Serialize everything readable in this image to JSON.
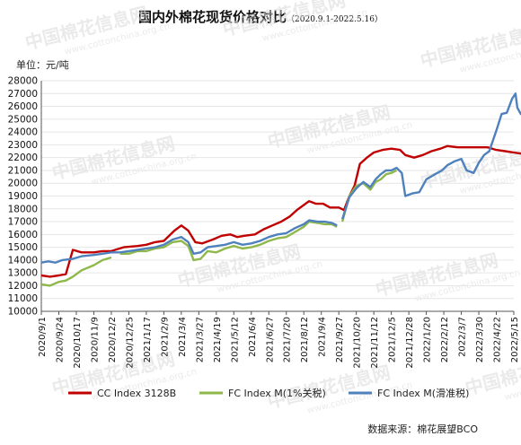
{
  "title": "国内外棉花现货价格对比",
  "subtitle": "（2020.9.1-2022.5.16）",
  "unit_label": "单位：元/吨",
  "source_label": "数据来源：棉花展望BCO",
  "watermark": {
    "brand": "中国棉花信息网",
    "url": "www.cottonchina.org.cn"
  },
  "colors": {
    "cc_index": "#c00000",
    "fc_1pct": "#8fb84a",
    "fc_sliding": "#4f81bd",
    "grid": "#e6e6e6",
    "axis": "#555555",
    "watermark": "#d9d9d9"
  },
  "chart_data": {
    "type": "line",
    "title": "国内外棉花现货价格对比",
    "ylabel": "单位：元/吨",
    "ylim": [
      10000,
      28000
    ],
    "yticks": [
      10000,
      11000,
      12000,
      13000,
      14000,
      15000,
      16000,
      17000,
      18000,
      19000,
      20000,
      21000,
      22000,
      23000,
      24000,
      25000,
      26000,
      27000,
      28000
    ],
    "categories": [
      "2020/9/1",
      "2020/9/24",
      "2020/10/17",
      "2020/11/9",
      "2020/12/2",
      "2020/12/25",
      "2021/1/17",
      "2021/2/9",
      "2021/3/4",
      "2021/3/27",
      "2021/4/19",
      "2021/5/12",
      "2021/6/4",
      "2021/6/27",
      "2021/7/20",
      "2021/8/12",
      "2021/9/4",
      "2021/9/27",
      "2021/10/20",
      "2021/11/12",
      "2021/12/5",
      "2021/12/28",
      "2022/1/20",
      "2022/2/12",
      "2022/3/7",
      "2022/3/30",
      "2022/4/22",
      "2022/5/15"
    ],
    "grid": true,
    "legend_position": "bottom",
    "series": [
      {
        "name": "CC Index 3128B",
        "color": "#c00000",
        "points": [
          [
            0,
            12800
          ],
          [
            0.5,
            12700
          ],
          [
            1,
            12800
          ],
          [
            1.4,
            12900
          ],
          [
            1.8,
            14800
          ],
          [
            2.3,
            14600
          ],
          [
            3,
            14600
          ],
          [
            3.5,
            14700
          ],
          [
            4,
            14700
          ],
          [
            4.7,
            15000
          ],
          [
            5.5,
            15100
          ],
          [
            6,
            15200
          ],
          [
            6.5,
            15400
          ],
          [
            7,
            15500
          ],
          [
            7.6,
            16300
          ],
          [
            8,
            16700
          ],
          [
            8.4,
            16300
          ],
          [
            8.8,
            15400
          ],
          [
            9.2,
            15300
          ],
          [
            9.8,
            15600
          ],
          [
            10.3,
            15900
          ],
          [
            10.8,
            16000
          ],
          [
            11.2,
            15800
          ],
          [
            11.6,
            15900
          ],
          [
            12.2,
            16000
          ],
          [
            12.7,
            16400
          ],
          [
            13.2,
            16700
          ],
          [
            13.7,
            17000
          ],
          [
            14.2,
            17400
          ],
          [
            14.6,
            17900
          ],
          [
            15,
            18300
          ],
          [
            15.3,
            18600
          ],
          [
            15.7,
            18400
          ],
          [
            16.1,
            18400
          ],
          [
            16.5,
            18100
          ],
          [
            17,
            18100
          ],
          [
            17.3,
            17900
          ],
          [
            17.6,
            19000
          ],
          [
            17.9,
            19800
          ],
          [
            18.2,
            21500
          ],
          [
            18.6,
            22000
          ],
          [
            19,
            22400
          ],
          [
            19.5,
            22600
          ],
          [
            20,
            22700
          ],
          [
            20.5,
            22600
          ],
          [
            20.8,
            22200
          ],
          [
            21.3,
            22000
          ],
          [
            21.8,
            22200
          ],
          [
            22.3,
            22500
          ],
          [
            22.8,
            22700
          ],
          [
            23.2,
            22900
          ],
          [
            23.8,
            22800
          ],
          [
            24.3,
            22800
          ],
          [
            25,
            22800
          ],
          [
            25.5,
            22800
          ],
          [
            26,
            22600
          ],
          [
            26.5,
            22500
          ],
          [
            27,
            22400
          ],
          [
            27.5,
            22300
          ]
        ],
        "segments_break_after": []
      },
      {
        "name": "FC Index M(1%关税)",
        "color": "#8fb84a",
        "points": [
          [
            0,
            12100
          ],
          [
            0.5,
            12000
          ],
          [
            1,
            12300
          ],
          [
            1.4,
            12400
          ],
          [
            1.8,
            12700
          ],
          [
            2.3,
            13200
          ],
          [
            3,
            13600
          ],
          [
            3.5,
            14000
          ],
          [
            4,
            14200
          ],
          [
            4.5,
            14500
          ],
          [
            5,
            14500
          ],
          [
            5.5,
            14700
          ],
          [
            6,
            14700
          ],
          [
            6.5,
            14900
          ],
          [
            7,
            15000
          ],
          [
            7.5,
            15400
          ],
          [
            8,
            15500
          ],
          [
            8.4,
            15100
          ],
          [
            8.7,
            14000
          ],
          [
            9.1,
            14100
          ],
          [
            9.5,
            14700
          ],
          [
            10,
            14600
          ],
          [
            10.5,
            14900
          ],
          [
            11,
            15100
          ],
          [
            11.5,
            14900
          ],
          [
            12,
            15000
          ],
          [
            12.5,
            15200
          ],
          [
            13,
            15500
          ],
          [
            13.5,
            15700
          ],
          [
            14,
            15800
          ],
          [
            14.5,
            16200
          ],
          [
            15,
            16600
          ],
          [
            15.3,
            17000
          ],
          [
            15.8,
            16900
          ],
          [
            16.2,
            16800
          ],
          [
            16.6,
            16800
          ],
          [
            16.9,
            16600
          ],
          [
            17.2,
            17000
          ],
          [
            17.6,
            19000
          ],
          [
            18,
            19800
          ],
          [
            18.4,
            20000
          ],
          [
            18.8,
            19500
          ],
          [
            19.1,
            20100
          ],
          [
            19.4,
            20300
          ],
          [
            19.7,
            20700
          ],
          [
            20,
            20800
          ],
          [
            20.3,
            21000
          ]
        ],
        "segments_break_after": [
          4.2,
          17.0
        ]
      },
      {
        "name": "FC Index M(滑准税)",
        "color": "#4f81bd",
        "points": [
          [
            0,
            13800
          ],
          [
            0.4,
            13900
          ],
          [
            0.8,
            13800
          ],
          [
            1.2,
            14000
          ],
          [
            1.8,
            14100
          ],
          [
            2.3,
            14300
          ],
          [
            3,
            14400
          ],
          [
            3.5,
            14500
          ],
          [
            4,
            14600
          ],
          [
            4.5,
            14600
          ],
          [
            5,
            14700
          ],
          [
            5.5,
            14800
          ],
          [
            6,
            14900
          ],
          [
            6.5,
            15000
          ],
          [
            7,
            15200
          ],
          [
            7.5,
            15600
          ],
          [
            8,
            15800
          ],
          [
            8.4,
            15400
          ],
          [
            8.7,
            14500
          ],
          [
            9.1,
            14600
          ],
          [
            9.5,
            15000
          ],
          [
            10,
            15100
          ],
          [
            10.5,
            15200
          ],
          [
            11,
            15400
          ],
          [
            11.5,
            15200
          ],
          [
            12,
            15300
          ],
          [
            12.5,
            15500
          ],
          [
            13,
            15800
          ],
          [
            13.5,
            16000
          ],
          [
            14,
            16100
          ],
          [
            14.5,
            16500
          ],
          [
            15,
            16800
          ],
          [
            15.3,
            17100
          ],
          [
            15.8,
            17000
          ],
          [
            16.2,
            17000
          ],
          [
            16.6,
            16900
          ],
          [
            16.9,
            16700
          ],
          [
            17.2,
            17200
          ],
          [
            17.6,
            18900
          ],
          [
            18,
            19600
          ],
          [
            18.4,
            20100
          ],
          [
            18.8,
            19700
          ],
          [
            19.1,
            20300
          ],
          [
            19.4,
            20700
          ],
          [
            19.7,
            21000
          ],
          [
            20,
            21000
          ],
          [
            20.3,
            21200
          ],
          [
            20.6,
            20800
          ],
          [
            20.8,
            19000
          ],
          [
            21.2,
            19200
          ],
          [
            21.6,
            19300
          ],
          [
            22,
            20300
          ],
          [
            22.5,
            20700
          ],
          [
            22.9,
            21000
          ],
          [
            23.2,
            21400
          ],
          [
            23.6,
            21700
          ],
          [
            24,
            21900
          ],
          [
            24.3,
            21000
          ],
          [
            24.7,
            20800
          ],
          [
            25,
            21600
          ],
          [
            25.3,
            22200
          ],
          [
            25.6,
            22500
          ],
          [
            26,
            24100
          ],
          [
            26.3,
            25400
          ],
          [
            26.6,
            25500
          ],
          [
            26.9,
            26600
          ],
          [
            27.1,
            27000
          ],
          [
            27.2,
            25900
          ],
          [
            27.4,
            25400
          ],
          [
            27.6,
            25600
          ]
        ],
        "segments_break_after": [
          17.0
        ]
      }
    ]
  }
}
